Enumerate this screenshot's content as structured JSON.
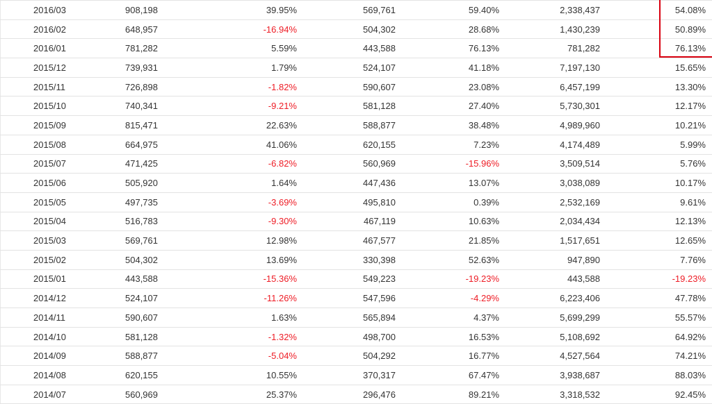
{
  "table": {
    "rows": [
      {
        "month": "2016/03",
        "c1": "908,198",
        "c2": "39.95%",
        "c3": "569,761",
        "c4": "59.40%",
        "c5": "2,338,437",
        "c6": "54.08%"
      },
      {
        "month": "2016/02",
        "c1": "648,957",
        "c2": "-16.94%",
        "c3": "504,302",
        "c4": "28.68%",
        "c5": "1,430,239",
        "c6": "50.89%"
      },
      {
        "month": "2016/01",
        "c1": "781,282",
        "c2": "5.59%",
        "c3": "443,588",
        "c4": "76.13%",
        "c5": "781,282",
        "c6": "76.13%"
      },
      {
        "month": "2015/12",
        "c1": "739,931",
        "c2": "1.79%",
        "c3": "524,107",
        "c4": "41.18%",
        "c5": "7,197,130",
        "c6": "15.65%"
      },
      {
        "month": "2015/11",
        "c1": "726,898",
        "c2": "-1.82%",
        "c3": "590,607",
        "c4": "23.08%",
        "c5": "6,457,199",
        "c6": "13.30%"
      },
      {
        "month": "2015/10",
        "c1": "740,341",
        "c2": "-9.21%",
        "c3": "581,128",
        "c4": "27.40%",
        "c5": "5,730,301",
        "c6": "12.17%"
      },
      {
        "month": "2015/09",
        "c1": "815,471",
        "c2": "22.63%",
        "c3": "588,877",
        "c4": "38.48%",
        "c5": "4,989,960",
        "c6": "10.21%"
      },
      {
        "month": "2015/08",
        "c1": "664,975",
        "c2": "41.06%",
        "c3": "620,155",
        "c4": "7.23%",
        "c5": "4,174,489",
        "c6": "5.99%"
      },
      {
        "month": "2015/07",
        "c1": "471,425",
        "c2": "-6.82%",
        "c3": "560,969",
        "c4": "-15.96%",
        "c5": "3,509,514",
        "c6": "5.76%"
      },
      {
        "month": "2015/06",
        "c1": "505,920",
        "c2": "1.64%",
        "c3": "447,436",
        "c4": "13.07%",
        "c5": "3,038,089",
        "c6": "10.17%"
      },
      {
        "month": "2015/05",
        "c1": "497,735",
        "c2": "-3.69%",
        "c3": "495,810",
        "c4": "0.39%",
        "c5": "2,532,169",
        "c6": "9.61%"
      },
      {
        "month": "2015/04",
        "c1": "516,783",
        "c2": "-9.30%",
        "c3": "467,119",
        "c4": "10.63%",
        "c5": "2,034,434",
        "c6": "12.13%"
      },
      {
        "month": "2015/03",
        "c1": "569,761",
        "c2": "12.98%",
        "c3": "467,577",
        "c4": "21.85%",
        "c5": "1,517,651",
        "c6": "12.65%"
      },
      {
        "month": "2015/02",
        "c1": "504,302",
        "c2": "13.69%",
        "c3": "330,398",
        "c4": "52.63%",
        "c5": "947,890",
        "c6": "7.76%"
      },
      {
        "month": "2015/01",
        "c1": "443,588",
        "c2": "-15.36%",
        "c3": "549,223",
        "c4": "-19.23%",
        "c5": "443,588",
        "c6": "-19.23%"
      },
      {
        "month": "2014/12",
        "c1": "524,107",
        "c2": "-11.26%",
        "c3": "547,596",
        "c4": "-4.29%",
        "c5": "6,223,406",
        "c6": "47.78%"
      },
      {
        "month": "2014/11",
        "c1": "590,607",
        "c2": "1.63%",
        "c3": "565,894",
        "c4": "4.37%",
        "c5": "5,699,299",
        "c6": "55.57%"
      },
      {
        "month": "2014/10",
        "c1": "581,128",
        "c2": "-1.32%",
        "c3": "498,700",
        "c4": "16.53%",
        "c5": "5,108,692",
        "c6": "64.92%"
      },
      {
        "month": "2014/09",
        "c1": "588,877",
        "c2": "-5.04%",
        "c3": "504,292",
        "c4": "16.77%",
        "c5": "4,527,564",
        "c6": "74.21%"
      },
      {
        "month": "2014/08",
        "c1": "620,155",
        "c2": "10.55%",
        "c3": "370,317",
        "c4": "67.47%",
        "c5": "3,938,687",
        "c6": "88.03%"
      },
      {
        "month": "2014/07",
        "c1": "560,969",
        "c2": "25.37%",
        "c3": "296,476",
        "c4": "89.21%",
        "c5": "3,318,532",
        "c6": "92.45%"
      }
    ]
  },
  "colors": {
    "text": "#333333",
    "negative": "#ee1c25",
    "highlight_border": "#d9000f",
    "row_border": "#e3e3e3"
  }
}
